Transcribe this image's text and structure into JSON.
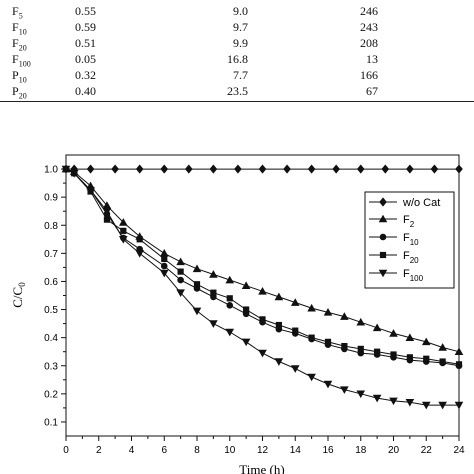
{
  "table": {
    "rows": [
      [
        "F5",
        "0.55",
        "9.0",
        "246"
      ],
      [
        "F10",
        "0.59",
        "9.7",
        "243"
      ],
      [
        "F20",
        "0.51",
        "9.9",
        "208"
      ],
      [
        "F100",
        "0.05",
        "16.8",
        "13"
      ],
      [
        "P10",
        "0.32",
        "7.7",
        "166"
      ],
      [
        "P20",
        "0.40",
        "23.5",
        "67"
      ]
    ]
  },
  "chart_data": {
    "type": "line",
    "xlabel": "Time (h)",
    "ylabel": "C/C0",
    "xlim": [
      0,
      24
    ],
    "ylim": [
      0.05,
      1.05
    ],
    "xticks": [
      0,
      2,
      4,
      6,
      8,
      10,
      12,
      14,
      16,
      18,
      20,
      22,
      24
    ],
    "yticks": [
      0.1,
      0.2,
      0.3,
      0.4,
      0.5,
      0.6,
      0.7,
      0.8,
      0.9,
      1.0
    ],
    "legend_position": "top-right",
    "grid": false,
    "series": [
      {
        "name": "w/o Cat",
        "marker": "diamond",
        "x": [
          0,
          0.5,
          1.5,
          3,
          4.5,
          6,
          7.5,
          9,
          10.5,
          12,
          13.5,
          15,
          16.5,
          18,
          19.5,
          21,
          22.5,
          24
        ],
        "y": [
          1.0,
          1.0,
          1.0,
          1.0,
          1.0,
          1.0,
          1.0,
          1.0,
          1.0,
          1.0,
          1.0,
          1.0,
          1.0,
          1.0,
          1.0,
          1.0,
          1.0,
          1.0
        ]
      },
      {
        "name": "F2",
        "marker": "triangle-up",
        "x": [
          0,
          0.5,
          1.5,
          2.5,
          3.5,
          4.5,
          6,
          7,
          8,
          9,
          10,
          11,
          12,
          13,
          14,
          15,
          16,
          17,
          18,
          19,
          20,
          21,
          22,
          23,
          24
        ],
        "y": [
          1.0,
          0.99,
          0.94,
          0.87,
          0.81,
          0.76,
          0.7,
          0.67,
          0.645,
          0.625,
          0.605,
          0.585,
          0.565,
          0.545,
          0.525,
          0.505,
          0.49,
          0.475,
          0.455,
          0.435,
          0.415,
          0.4,
          0.385,
          0.365,
          0.35
        ]
      },
      {
        "name": "F10",
        "marker": "circle",
        "x": [
          0,
          0.5,
          1.5,
          2.5,
          3.5,
          4.5,
          6,
          7,
          8,
          9,
          10,
          11,
          12,
          13,
          14,
          15,
          16,
          17,
          18,
          19,
          20,
          21,
          22,
          23,
          24
        ],
        "y": [
          1.0,
          0.985,
          0.925,
          0.84,
          0.755,
          0.715,
          0.655,
          0.605,
          0.575,
          0.545,
          0.515,
          0.485,
          0.455,
          0.43,
          0.415,
          0.395,
          0.375,
          0.36,
          0.345,
          0.34,
          0.33,
          0.32,
          0.315,
          0.31,
          0.3
        ]
      },
      {
        "name": "F20",
        "marker": "square",
        "x": [
          0,
          0.5,
          1.5,
          2.5,
          3.5,
          4.5,
          6,
          7,
          8,
          9,
          10,
          11,
          12,
          13,
          14,
          15,
          16,
          17,
          18,
          19,
          20,
          21,
          22,
          23,
          24
        ],
        "y": [
          1.0,
          0.985,
          0.92,
          0.82,
          0.78,
          0.75,
          0.68,
          0.635,
          0.59,
          0.56,
          0.54,
          0.5,
          0.465,
          0.445,
          0.425,
          0.4,
          0.385,
          0.37,
          0.36,
          0.35,
          0.34,
          0.33,
          0.325,
          0.315,
          0.305
        ]
      },
      {
        "name": "F100",
        "marker": "triangle-down",
        "x": [
          0,
          0.5,
          1.5,
          2.5,
          3.5,
          4.5,
          6,
          7,
          8,
          9,
          10,
          11,
          12,
          13,
          14,
          15,
          16,
          17,
          18,
          19,
          20,
          21,
          22,
          23,
          24
        ],
        "y": [
          1.0,
          0.985,
          0.925,
          0.85,
          0.75,
          0.7,
          0.63,
          0.56,
          0.495,
          0.45,
          0.42,
          0.385,
          0.345,
          0.315,
          0.29,
          0.26,
          0.235,
          0.215,
          0.2,
          0.185,
          0.175,
          0.17,
          0.16,
          0.16,
          0.16
        ]
      }
    ]
  }
}
